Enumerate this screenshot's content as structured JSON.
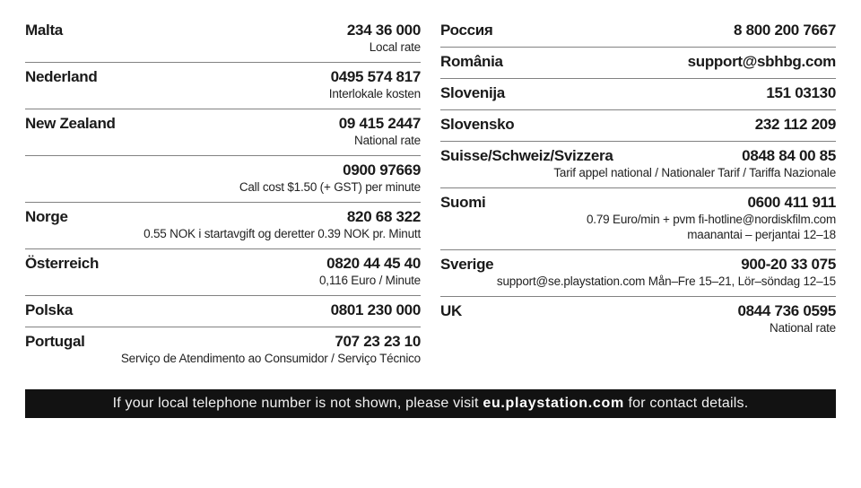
{
  "page": {
    "background": "#ffffff",
    "text_color": "#1a1a1a",
    "divider_color": "#828282"
  },
  "columns": {
    "left": [
      {
        "country": "Malta",
        "contact": "234 36 000",
        "notes": [
          "Local rate"
        ]
      },
      {
        "country": "Nederland",
        "contact": "0495 574 817",
        "notes": [
          "Interlokale kosten"
        ]
      },
      {
        "country": "New Zealand",
        "contact": "09 415 2447",
        "notes": [
          "National rate"
        ]
      },
      {
        "country": "",
        "contact": "0900 97669",
        "notes": [
          "Call cost $1.50 (+ GST) per minute"
        ]
      },
      {
        "country": "Norge",
        "contact": "820 68 322",
        "notes": [
          "0.55 NOK i startavgift og deretter 0.39 NOK pr. Minutt"
        ]
      },
      {
        "country": "Österreich",
        "contact": "0820 44 45 40",
        "notes": [
          "0,116 Euro / Minute"
        ]
      },
      {
        "country": "Polska",
        "contact": "0801 230 000",
        "notes": []
      },
      {
        "country": "Portugal",
        "contact": "707 23 23 10",
        "notes": [
          "Serviço de Atendimento ao Consumidor / Serviço Técnico"
        ]
      }
    ],
    "right": [
      {
        "country": "Россия",
        "contact": "8 800 200 7667",
        "notes": []
      },
      {
        "country": "România",
        "contact": "support@sbhbg.com",
        "notes": []
      },
      {
        "country": "Slovenija",
        "contact": "151 03130",
        "notes": []
      },
      {
        "country": "Slovensko",
        "contact": "232 112 209",
        "notes": []
      },
      {
        "country": "Suisse/Schweiz/Svizzera",
        "contact": "0848 84 00 85",
        "notes": [
          "Tarif appel national / Nationaler Tarif / Tariffa Nazionale"
        ]
      },
      {
        "country": "Suomi",
        "contact": "0600 411 911",
        "notes": [
          "0.79 Euro/min + pvm fi-hotline@nordiskfilm.com",
          "maanantai – perjantai 12–18"
        ]
      },
      {
        "country": "Sverige",
        "contact": "900-20 33 075",
        "notes": [
          "support@se.playstation.com Mån–Fre 15–21, Lör–söndag 12–15"
        ]
      },
      {
        "country": "UK",
        "contact": "0844 736 0595",
        "notes": [
          "National rate"
        ]
      }
    ]
  },
  "footer": {
    "prefix": "If your local telephone number is not shown, please visit ",
    "link": "eu.playstation.com",
    "suffix": " for contact details.",
    "background": "#121212",
    "text_color": "#f2f2f2"
  }
}
